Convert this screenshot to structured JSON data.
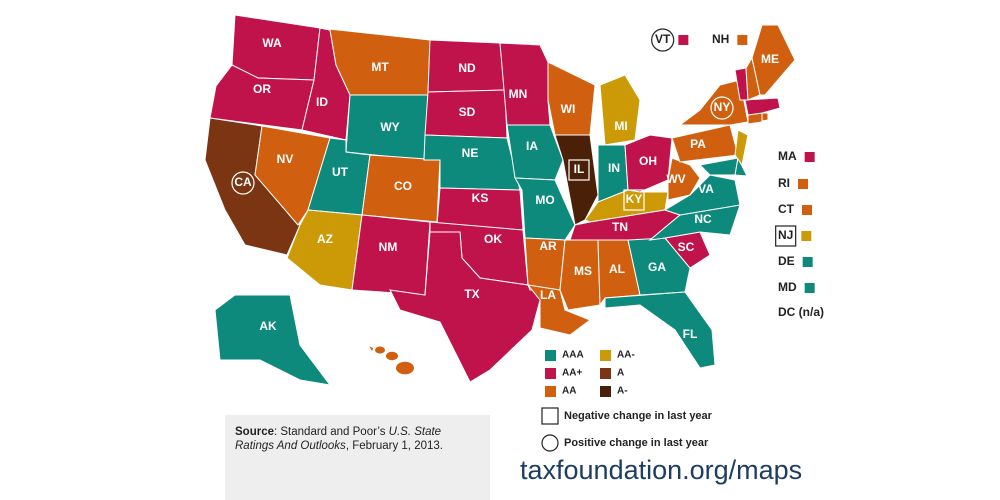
{
  "map": {
    "states": [
      {
        "abbr": "WA",
        "rating": "AA+"
      },
      {
        "abbr": "OR",
        "rating": "AA+"
      },
      {
        "abbr": "CA",
        "rating": "A",
        "marker": "circle"
      },
      {
        "abbr": "NV",
        "rating": "AA"
      },
      {
        "abbr": "ID",
        "rating": "AA+"
      },
      {
        "abbr": "MT",
        "rating": "AA"
      },
      {
        "abbr": "WY",
        "rating": "AAA"
      },
      {
        "abbr": "UT",
        "rating": "AAA"
      },
      {
        "abbr": "CO",
        "rating": "AA"
      },
      {
        "abbr": "AZ",
        "rating": "AA-"
      },
      {
        "abbr": "NM",
        "rating": "AA+"
      },
      {
        "abbr": "ND",
        "rating": "AA+"
      },
      {
        "abbr": "SD",
        "rating": "AA+"
      },
      {
        "abbr": "NE",
        "rating": "AAA"
      },
      {
        "abbr": "KS",
        "rating": "AA+"
      },
      {
        "abbr": "OK",
        "rating": "AA+"
      },
      {
        "abbr": "TX",
        "rating": "AA+"
      },
      {
        "abbr": "MN",
        "rating": "AA+"
      },
      {
        "abbr": "IA",
        "rating": "AAA"
      },
      {
        "abbr": "MO",
        "rating": "AAA"
      },
      {
        "abbr": "AR",
        "rating": "AA"
      },
      {
        "abbr": "LA",
        "rating": "AA"
      },
      {
        "abbr": "WI",
        "rating": "AA"
      },
      {
        "abbr": "IL",
        "rating": "A-",
        "marker": "square"
      },
      {
        "abbr": "MI",
        "rating": "AA-"
      },
      {
        "abbr": "IN",
        "rating": "AAA"
      },
      {
        "abbr": "OH",
        "rating": "AA+"
      },
      {
        "abbr": "KY",
        "rating": "AA-",
        "marker": "square"
      },
      {
        "abbr": "TN",
        "rating": "AA+"
      },
      {
        "abbr": "MS",
        "rating": "AA"
      },
      {
        "abbr": "AL",
        "rating": "AA"
      },
      {
        "abbr": "GA",
        "rating": "AAA"
      },
      {
        "abbr": "FL",
        "rating": "AAA"
      },
      {
        "abbr": "SC",
        "rating": "AA+"
      },
      {
        "abbr": "NC",
        "rating": "AAA"
      },
      {
        "abbr": "VA",
        "rating": "AAA"
      },
      {
        "abbr": "WV",
        "rating": "AA"
      },
      {
        "abbr": "PA",
        "rating": "AA"
      },
      {
        "abbr": "NY",
        "rating": "AA",
        "marker": "circle"
      },
      {
        "abbr": "MD",
        "rating": "AAA"
      },
      {
        "abbr": "DE",
        "rating": "AAA"
      },
      {
        "abbr": "NJ",
        "rating": "AA-",
        "marker": "square"
      },
      {
        "abbr": "CT",
        "rating": "AA"
      },
      {
        "abbr": "RI",
        "rating": "AA"
      },
      {
        "abbr": "MA",
        "rating": "AA+"
      },
      {
        "abbr": "VT",
        "rating": "AA+",
        "marker": "circle"
      },
      {
        "abbr": "NH",
        "rating": "AA"
      },
      {
        "abbr": "ME",
        "rating": "AA"
      },
      {
        "abbr": "AK",
        "rating": "AAA"
      },
      {
        "abbr": "HI",
        "rating": "AA"
      }
    ],
    "dc_note": "DC (n/a)",
    "ratings": [
      {
        "label": "AAA",
        "color": "#0e8a7d"
      },
      {
        "label": "AA+",
        "color": "#c0124b"
      },
      {
        "label": "AA",
        "color": "#d0600f"
      },
      {
        "label": "AA-",
        "color": "#cc9a06"
      },
      {
        "label": "A",
        "color": "#7b3512"
      },
      {
        "label": "A-",
        "color": "#4a2008"
      }
    ],
    "markers": [
      {
        "shape": "square",
        "label": "Negative change in last year"
      },
      {
        "shape": "circle",
        "label": "Positive change in last year"
      }
    ],
    "source": {
      "label": "Source",
      "text": ": Standard and Poor’s ",
      "title": "U.S. State Ratings And Outlooks",
      "date": ", February 1, 2013."
    },
    "url": "taxfoundation.org/maps"
  }
}
